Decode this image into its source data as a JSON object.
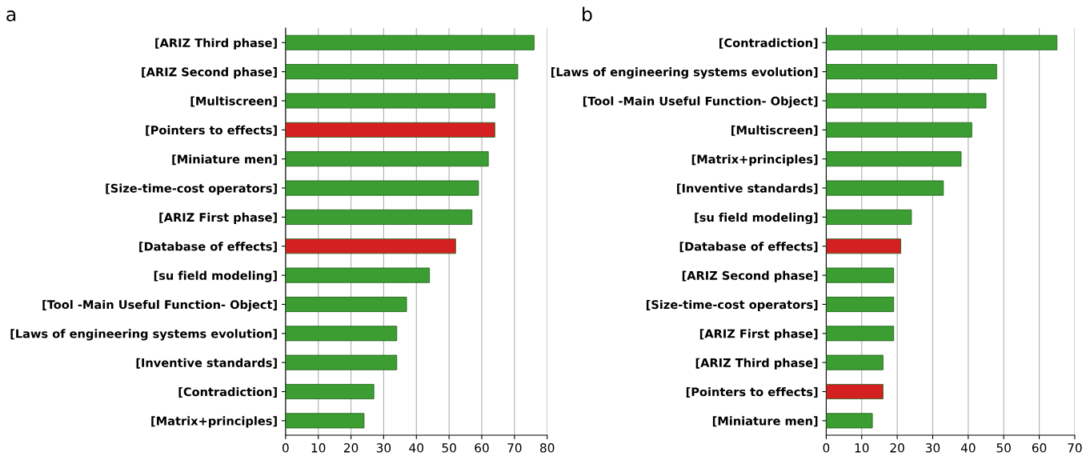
{
  "chart_data": [
    {
      "type": "bar",
      "orientation": "horizontal",
      "title": "a",
      "grid": "x",
      "legend": false,
      "categories": [
        "[ARIZ Third phase]",
        "[ARIZ Second phase]",
        "[Multiscreen]",
        "[Pointers to effects]",
        "[Miniature men]",
        "[Size-time-cost operators]",
        "[ARIZ First phase]",
        "[Database of effects]",
        "[su field modeling]",
        "[Tool -Main Useful Function- Object]",
        "[Laws of engineering systems evolution]",
        "[Inventive standards]",
        "[Contradiction]",
        "[Matrix+principles]"
      ],
      "values": [
        76,
        71,
        64,
        64,
        62,
        59,
        57,
        52,
        44,
        37,
        34,
        34,
        27,
        24
      ],
      "colors": [
        "#3c9e32",
        "#3c9e32",
        "#3c9e32",
        "#d42020",
        "#3c9e32",
        "#3c9e32",
        "#3c9e32",
        "#d42020",
        "#3c9e32",
        "#3c9e32",
        "#3c9e32",
        "#3c9e32",
        "#3c9e32",
        "#3c9e32"
      ],
      "xlim": [
        0,
        80
      ],
      "xticks": [
        0,
        10,
        20,
        30,
        40,
        50,
        60,
        70,
        80
      ]
    },
    {
      "type": "bar",
      "orientation": "horizontal",
      "title": "b",
      "grid": "x",
      "legend": false,
      "categories": [
        "[Contradiction]",
        "[Laws of engineering systems evolution]",
        "[Tool -Main Useful Function- Object]",
        "[Multiscreen]",
        "[Matrix+principles]",
        "[Inventive standards]",
        "[su field modeling]",
        "[Database of effects]",
        "[ARIZ Second phase]",
        "[Size-time-cost operators]",
        "[ARIZ First phase]",
        "[ARIZ Third phase]",
        "[Pointers to effects]",
        "[Miniature men]"
      ],
      "values": [
        65,
        48,
        45,
        41,
        38,
        33,
        24,
        21,
        19,
        19,
        19,
        16,
        16,
        13
      ],
      "colors": [
        "#3c9e32",
        "#3c9e32",
        "#3c9e32",
        "#3c9e32",
        "#3c9e32",
        "#3c9e32",
        "#3c9e32",
        "#d42020",
        "#3c9e32",
        "#3c9e32",
        "#3c9e32",
        "#3c9e32",
        "#d42020",
        "#3c9e32"
      ],
      "xlim": [
        0,
        70
      ],
      "xticks": [
        0,
        10,
        20,
        30,
        40,
        50,
        60,
        70
      ]
    }
  ]
}
